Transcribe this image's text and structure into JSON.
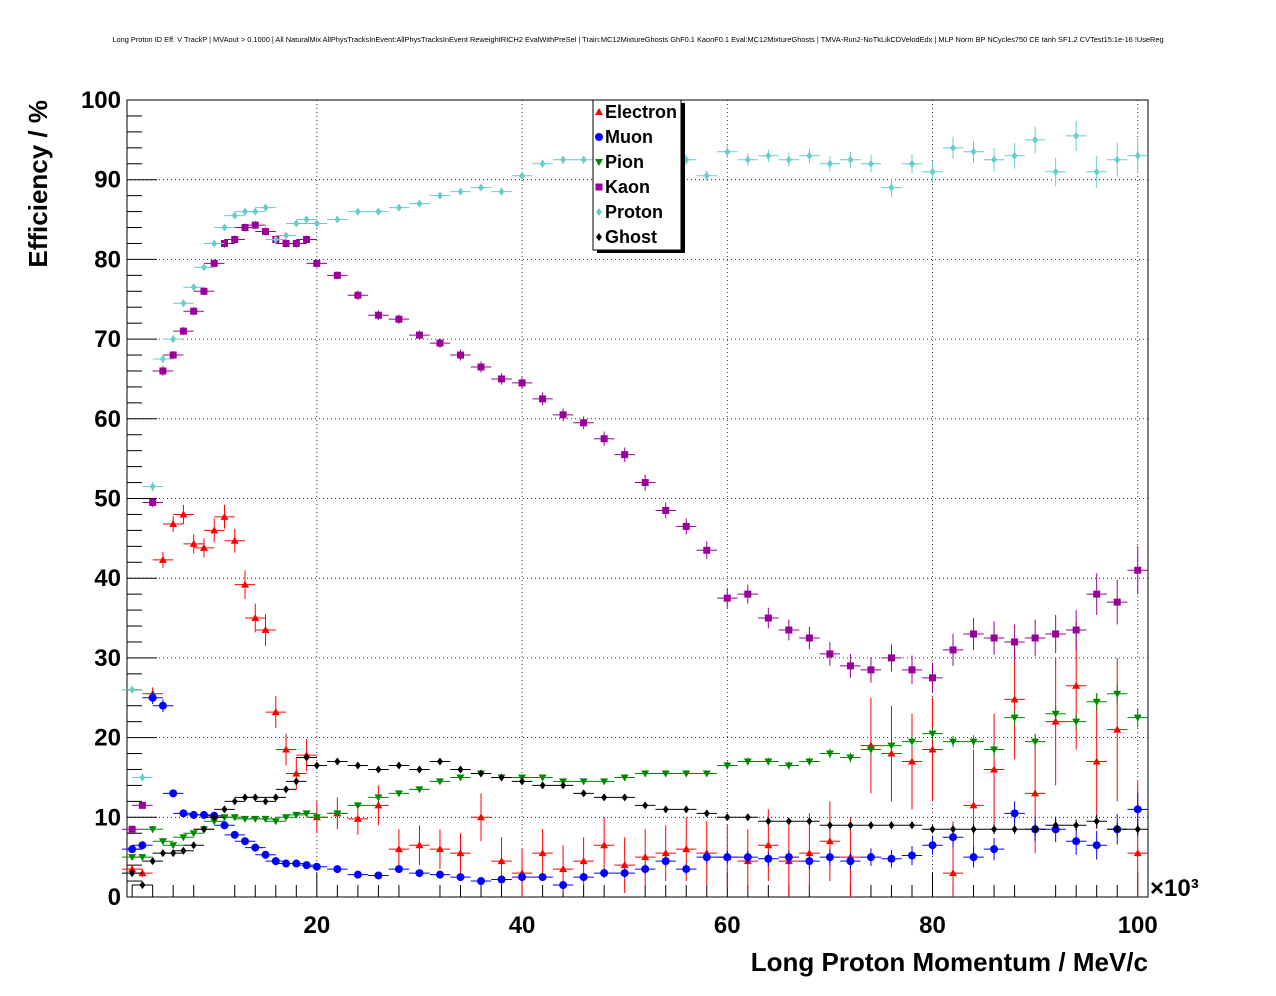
{
  "chart_data": {
    "type": "scatter",
    "title": "Long Proton ID Eff. V TrackP | MVAout > 0.1000 | All NaturalMix AllPhysTracksInEvent:AllPhysTracksInEvent ReweightRICH2 EvalWithPreSel | Train:MC12MixtureGhosts GhF0.1 KaonF0.1 Eval:MC12MixtureGhosts | TMVA-Run2-NoTkLikCDVelodEdx | MLP Norm BP NCycles750 CE tanh SF1.2 CVTest15:1e-16 !UseReg",
    "xlabel": "Long Proton Momentum / MeV/c",
    "ylabel": "Efficiency / %",
    "x_exponent": "×10³",
    "xlim": [
      1.5,
      101
    ],
    "ylim": [
      0,
      100
    ],
    "x_ticks": [
      "20",
      "40",
      "60",
      "80",
      "100"
    ],
    "y_ticks": [
      "0",
      "10",
      "20",
      "30",
      "40",
      "50",
      "60",
      "70",
      "80",
      "90",
      "100"
    ],
    "grid": true,
    "legend_position": "top-center",
    "series": [
      {
        "name": "Electron",
        "color": "#ff0000",
        "marker": "triangle-up",
        "x": [
          2.0,
          3.0,
          4.0,
          5.0,
          6.0,
          7.0,
          8.0,
          9.0,
          10.0,
          11.0,
          12.0,
          13.0,
          14.0,
          15.0,
          16.0,
          17.0,
          18.0,
          19.0,
          20.0,
          22.0,
          24.0,
          26.0,
          28.0,
          30.0,
          32.0,
          34.0,
          36.0,
          38.0,
          40.0,
          42.0,
          44.0,
          46.0,
          48.0,
          50.0,
          52.0,
          54.0,
          56.0,
          58.0,
          60.0,
          62.0,
          64.0,
          66.0,
          68.0,
          70.0,
          72.0,
          74.0,
          76.0,
          78.0,
          80.0,
          82.0,
          84.0,
          86.0,
          88.0,
          90.0,
          92.0,
          94.0,
          96.0,
          98.0,
          100.0
        ],
        "y": [
          3.5,
          3.0,
          25.5,
          42.3,
          46.8,
          48.0,
          44.3,
          43.8,
          46.0,
          47.7,
          44.7,
          39.2,
          35.0,
          33.5,
          23.2,
          18.5,
          15.5,
          17.8,
          10.0,
          10.5,
          9.8,
          11.5,
          6.0,
          6.5,
          6.0,
          5.5,
          10.0,
          4.5,
          3.0,
          5.5,
          3.5,
          4.5,
          6.5,
          4.0,
          5.0,
          5.5,
          6.0,
          5.5,
          5.0,
          4.5,
          6.5,
          4.5,
          5.5,
          7.0,
          5.0,
          19.0,
          18.0,
          17.0,
          18.5,
          3.0,
          11.5,
          16.0,
          24.8,
          13.0,
          22.0,
          26.5,
          17.0,
          21.0,
          5.5
        ],
        "err": [
          0.5,
          0.5,
          0.8,
          1.0,
          1.0,
          1.2,
          1.2,
          1.2,
          1.5,
          1.5,
          1.5,
          1.8,
          1.8,
          2.0,
          2.0,
          2.0,
          2.0,
          2.0,
          2.0,
          2.0,
          2.0,
          2.5,
          2.5,
          2.5,
          2.5,
          2.5,
          3.0,
          3.0,
          3.0,
          3.0,
          3.0,
          3.0,
          3.5,
          3.5,
          3.5,
          3.5,
          4.0,
          4.0,
          4.0,
          4.0,
          4.5,
          4.5,
          5.0,
          5.0,
          5.0,
          6.0,
          6.0,
          6.0,
          6.5,
          6.5,
          7.0,
          7.0,
          7.5,
          7.5,
          8.0,
          8.0,
          8.5,
          9.0,
          9.0
        ]
      },
      {
        "name": "Muon",
        "color": "#0000ff",
        "marker": "circle",
        "x": [
          2.0,
          3.0,
          4.0,
          5.0,
          6.0,
          7.0,
          8.0,
          9.0,
          10.0,
          11.0,
          12.0,
          13.0,
          14.0,
          15.0,
          16.0,
          17.0,
          18.0,
          19.0,
          20.0,
          22.0,
          24.0,
          26.0,
          28.0,
          30.0,
          32.0,
          34.0,
          36.0,
          38.0,
          40.0,
          42.0,
          44.0,
          46.0,
          48.0,
          50.0,
          52.0,
          54.0,
          56.0,
          58.0,
          60.0,
          62.0,
          64.0,
          66.0,
          68.0,
          70.0,
          72.0,
          74.0,
          76.0,
          78.0,
          80.0,
          82.0,
          84.0,
          86.0,
          88.0,
          90.0,
          92.0,
          94.0,
          96.0,
          98.0,
          100.0
        ],
        "y": [
          6.0,
          6.5,
          25.0,
          24.0,
          13.0,
          10.5,
          10.3,
          10.3,
          10.2,
          9.0,
          7.8,
          7.0,
          6.2,
          5.3,
          4.5,
          4.2,
          4.2,
          4.0,
          3.8,
          3.5,
          2.8,
          2.7,
          3.5,
          3.0,
          2.8,
          2.5,
          2.0,
          2.2,
          2.5,
          2.5,
          1.5,
          2.5,
          3.0,
          3.0,
          3.5,
          4.5,
          3.5,
          5.0,
          5.0,
          5.0,
          4.8,
          5.0,
          4.5,
          5.0,
          4.5,
          5.0,
          4.8,
          5.2,
          6.5,
          7.5,
          5.0,
          6.0,
          10.5,
          8.5,
          8.5,
          7.0,
          6.5,
          8.5,
          11.0
        ],
        "err": [
          0.3,
          0.3,
          0.8,
          0.8,
          0.5,
          0.5,
          0.5,
          0.5,
          0.5,
          0.5,
          0.5,
          0.5,
          0.4,
          0.4,
          0.4,
          0.4,
          0.4,
          0.4,
          0.4,
          0.4,
          0.4,
          0.4,
          0.4,
          0.4,
          0.4,
          0.4,
          0.4,
          0.4,
          0.5,
          0.5,
          0.5,
          0.5,
          0.6,
          0.6,
          0.6,
          0.7,
          0.7,
          0.8,
          0.8,
          0.8,
          0.9,
          0.9,
          1.0,
          1.0,
          1.0,
          1.1,
          1.1,
          1.2,
          1.2,
          1.3,
          1.3,
          1.4,
          1.5,
          1.5,
          1.6,
          1.7,
          1.8,
          1.9,
          2.0
        ]
      },
      {
        "name": "Pion",
        "color": "#008800",
        "marker": "triangle-down",
        "x": [
          2.0,
          3.0,
          4.0,
          5.0,
          6.0,
          7.0,
          8.0,
          9.0,
          10.0,
          11.0,
          12.0,
          13.0,
          14.0,
          15.0,
          16.0,
          17.0,
          18.0,
          19.0,
          20.0,
          22.0,
          24.0,
          26.0,
          28.0,
          30.0,
          32.0,
          34.0,
          36.0,
          38.0,
          40.0,
          42.0,
          44.0,
          46.0,
          48.0,
          50.0,
          52.0,
          54.0,
          56.0,
          58.0,
          60.0,
          62.0,
          64.0,
          66.0,
          68.0,
          70.0,
          72.0,
          74.0,
          76.0,
          78.0,
          80.0,
          82.0,
          84.0,
          86.0,
          88.0,
          90.0,
          92.0,
          94.0,
          96.0,
          98.0,
          100.0
        ],
        "y": [
          5.0,
          5.0,
          8.5,
          7.0,
          6.5,
          7.5,
          8.0,
          8.5,
          9.5,
          10.0,
          10.0,
          9.8,
          9.8,
          9.8,
          9.5,
          10.0,
          10.3,
          10.5,
          10.0,
          10.5,
          11.5,
          12.5,
          13.0,
          13.5,
          14.5,
          15.0,
          15.5,
          15.0,
          15.0,
          15.0,
          14.5,
          14.5,
          14.5,
          15.0,
          15.5,
          15.5,
          15.5,
          15.5,
          16.5,
          17.0,
          17.0,
          16.5,
          17.0,
          18.0,
          17.5,
          18.5,
          19.0,
          19.5,
          20.5,
          19.5,
          19.5,
          18.5,
          22.5,
          19.5,
          23.0,
          22.0,
          24.5,
          25.5,
          22.5
        ],
        "err": [
          0.3,
          0.3,
          0.4,
          0.4,
          0.3,
          0.3,
          0.3,
          0.3,
          0.3,
          0.3,
          0.3,
          0.3,
          0.3,
          0.3,
          0.3,
          0.3,
          0.3,
          0.3,
          0.3,
          0.3,
          0.3,
          0.3,
          0.3,
          0.3,
          0.3,
          0.3,
          0.3,
          0.3,
          0.3,
          0.3,
          0.3,
          0.3,
          0.3,
          0.4,
          0.4,
          0.4,
          0.4,
          0.4,
          0.5,
          0.5,
          0.5,
          0.5,
          0.5,
          0.6,
          0.6,
          0.6,
          0.6,
          0.7,
          0.7,
          0.7,
          0.8,
          0.8,
          0.9,
          0.9,
          1.0,
          1.0,
          1.1,
          1.2,
          1.2
        ]
      },
      {
        "name": "Kaon",
        "color": "#990099",
        "marker": "square",
        "x": [
          2.0,
          3.0,
          4.0,
          5.0,
          6.0,
          7.0,
          8.0,
          9.0,
          10.0,
          11.0,
          12.0,
          13.0,
          14.0,
          15.0,
          16.0,
          17.0,
          18.0,
          19.0,
          20.0,
          22.0,
          24.0,
          26.0,
          28.0,
          30.0,
          32.0,
          34.0,
          36.0,
          38.0,
          40.0,
          42.0,
          44.0,
          46.0,
          48.0,
          50.0,
          52.0,
          54.0,
          56.0,
          58.0,
          60.0,
          62.0,
          64.0,
          66.0,
          68.0,
          70.0,
          72.0,
          74.0,
          76.0,
          78.0,
          80.0,
          82.0,
          84.0,
          86.0,
          88.0,
          90.0,
          92.0,
          94.0,
          96.0,
          98.0,
          100.0
        ],
        "y": [
          8.5,
          11.5,
          49.5,
          66.0,
          68.0,
          71.0,
          73.5,
          76.0,
          79.5,
          82.0,
          82.5,
          84.0,
          84.3,
          83.5,
          82.5,
          82.0,
          82.0,
          82.5,
          79.5,
          78.0,
          75.5,
          73.0,
          72.5,
          70.5,
          69.5,
          68.0,
          66.5,
          65.0,
          64.5,
          62.5,
          60.5,
          59.5,
          57.5,
          55.5,
          52.0,
          48.5,
          46.5,
          43.5,
          37.5,
          38.0,
          35.0,
          33.5,
          32.5,
          30.5,
          29.0,
          28.5,
          30.0,
          28.5,
          27.5,
          31.0,
          33.0,
          32.5,
          32.0,
          32.5,
          33.0,
          33.5,
          38.0,
          37.0,
          41.0
        ],
        "err": [
          0.3,
          0.3,
          0.6,
          0.6,
          0.5,
          0.5,
          0.5,
          0.5,
          0.5,
          0.5,
          0.5,
          0.5,
          0.5,
          0.5,
          0.5,
          0.5,
          0.5,
          0.5,
          0.5,
          0.5,
          0.6,
          0.6,
          0.6,
          0.6,
          0.6,
          0.7,
          0.7,
          0.7,
          0.7,
          0.8,
          0.8,
          0.8,
          0.9,
          0.9,
          1.0,
          1.0,
          1.0,
          1.1,
          1.2,
          1.2,
          1.3,
          1.3,
          1.4,
          1.5,
          1.5,
          1.6,
          1.7,
          1.8,
          1.9,
          2.0,
          2.0,
          2.1,
          2.2,
          2.3,
          2.4,
          2.5,
          2.6,
          2.8,
          3.0
        ]
      },
      {
        "name": "Proton",
        "color": "#66cccc",
        "marker": "diamond",
        "x": [
          2.0,
          3.0,
          4.0,
          5.0,
          6.0,
          7.0,
          8.0,
          9.0,
          10.0,
          11.0,
          12.0,
          13.0,
          14.0,
          15.0,
          16.0,
          17.0,
          18.0,
          19.0,
          20.0,
          22.0,
          24.0,
          26.0,
          28.0,
          30.0,
          32.0,
          34.0,
          36.0,
          38.0,
          40.0,
          42.0,
          44.0,
          46.0,
          48.0,
          50.0,
          52.0,
          54.0,
          56.0,
          58.0,
          60.0,
          62.0,
          64.0,
          66.0,
          68.0,
          70.0,
          72.0,
          74.0,
          76.0,
          78.0,
          80.0,
          82.0,
          84.0,
          86.0,
          88.0,
          90.0,
          92.0,
          94.0,
          96.0,
          98.0,
          100.0
        ],
        "y": [
          26.0,
          15.0,
          51.5,
          67.5,
          70.0,
          74.5,
          76.5,
          79.0,
          82.0,
          84.0,
          85.5,
          86.0,
          86.0,
          86.5,
          82.5,
          83.0,
          84.5,
          85.0,
          84.5,
          85.0,
          86.0,
          86.0,
          86.5,
          87.0,
          88.0,
          88.5,
          89.0,
          88.5,
          90.5,
          92.0,
          92.5,
          92.5,
          93.0,
          93.0,
          93.0,
          92.0,
          92.5,
          90.5,
          93.5,
          92.5,
          93.0,
          92.5,
          93.0,
          92.0,
          92.5,
          92.0,
          89.0,
          92.0,
          91.0,
          94.0,
          93.5,
          92.5,
          93.0,
          95.0,
          91.0,
          95.5,
          91.0,
          92.5,
          93.0
        ],
        "err": [
          0.5,
          0.5,
          0.6,
          0.5,
          0.5,
          0.4,
          0.4,
          0.4,
          0.4,
          0.3,
          0.3,
          0.3,
          0.3,
          0.3,
          0.3,
          0.3,
          0.3,
          0.3,
          0.3,
          0.3,
          0.3,
          0.3,
          0.3,
          0.3,
          0.4,
          0.4,
          0.4,
          0.4,
          0.5,
          0.5,
          0.5,
          0.5,
          0.6,
          0.6,
          0.6,
          0.6,
          0.7,
          0.7,
          0.8,
          0.8,
          0.8,
          0.9,
          0.9,
          1.0,
          1.0,
          1.1,
          1.2,
          1.2,
          1.3,
          1.4,
          1.4,
          1.5,
          1.6,
          1.7,
          1.8,
          1.9,
          2.0,
          2.1,
          2.2
        ]
      },
      {
        "name": "Ghost",
        "color": "#000000",
        "marker": "diamond",
        "x": [
          2.0,
          3.0,
          4.0,
          5.0,
          6.0,
          7.0,
          8.0,
          9.0,
          10.0,
          11.0,
          12.0,
          13.0,
          14.0,
          15.0,
          16.0,
          17.0,
          18.0,
          19.0,
          20.0,
          22.0,
          24.0,
          26.0,
          28.0,
          30.0,
          32.0,
          34.0,
          36.0,
          38.0,
          40.0,
          42.0,
          44.0,
          46.0,
          48.0,
          50.0,
          52.0,
          54.0,
          56.0,
          58.0,
          60.0,
          62.0,
          64.0,
          66.0,
          68.0,
          70.0,
          72.0,
          74.0,
          76.0,
          78.0,
          80.0,
          82.0,
          84.0,
          86.0,
          88.0,
          90.0,
          92.0,
          94.0,
          96.0,
          98.0,
          100.0
        ],
        "y": [
          3.0,
          1.5,
          4.5,
          5.5,
          5.5,
          5.8,
          6.5,
          8.5,
          10.0,
          11.0,
          12.0,
          12.5,
          12.5,
          12.0,
          12.5,
          13.5,
          14.5,
          17.5,
          16.5,
          17.0,
          16.5,
          16.0,
          16.5,
          16.0,
          17.0,
          16.0,
          15.5,
          15.0,
          14.5,
          14.0,
          14.0,
          13.0,
          12.5,
          12.5,
          11.5,
          11.0,
          11.0,
          10.5,
          10.0,
          10.0,
          9.5,
          9.5,
          9.5,
          9.0,
          9.0,
          9.0,
          9.0,
          9.0,
          8.5,
          8.5,
          8.5,
          8.5,
          8.5,
          8.5,
          9.0,
          9.0,
          9.5,
          8.5,
          8.5
        ],
        "err": [
          0.3,
          0.3,
          0.3,
          0.3,
          0.3,
          0.3,
          0.3,
          0.3,
          0.3,
          0.3,
          0.3,
          0.3,
          0.3,
          0.3,
          0.3,
          0.3,
          0.3,
          0.3,
          0.3,
          0.3,
          0.3,
          0.3,
          0.3,
          0.3,
          0.3,
          0.3,
          0.3,
          0.3,
          0.3,
          0.3,
          0.3,
          0.3,
          0.3,
          0.3,
          0.3,
          0.3,
          0.4,
          0.4,
          0.4,
          0.4,
          0.4,
          0.4,
          0.4,
          0.5,
          0.5,
          0.5,
          0.5,
          0.5,
          0.5,
          0.6,
          0.6,
          0.6,
          0.6,
          0.7,
          0.7,
          0.7,
          0.8,
          0.8,
          0.8
        ]
      }
    ]
  }
}
